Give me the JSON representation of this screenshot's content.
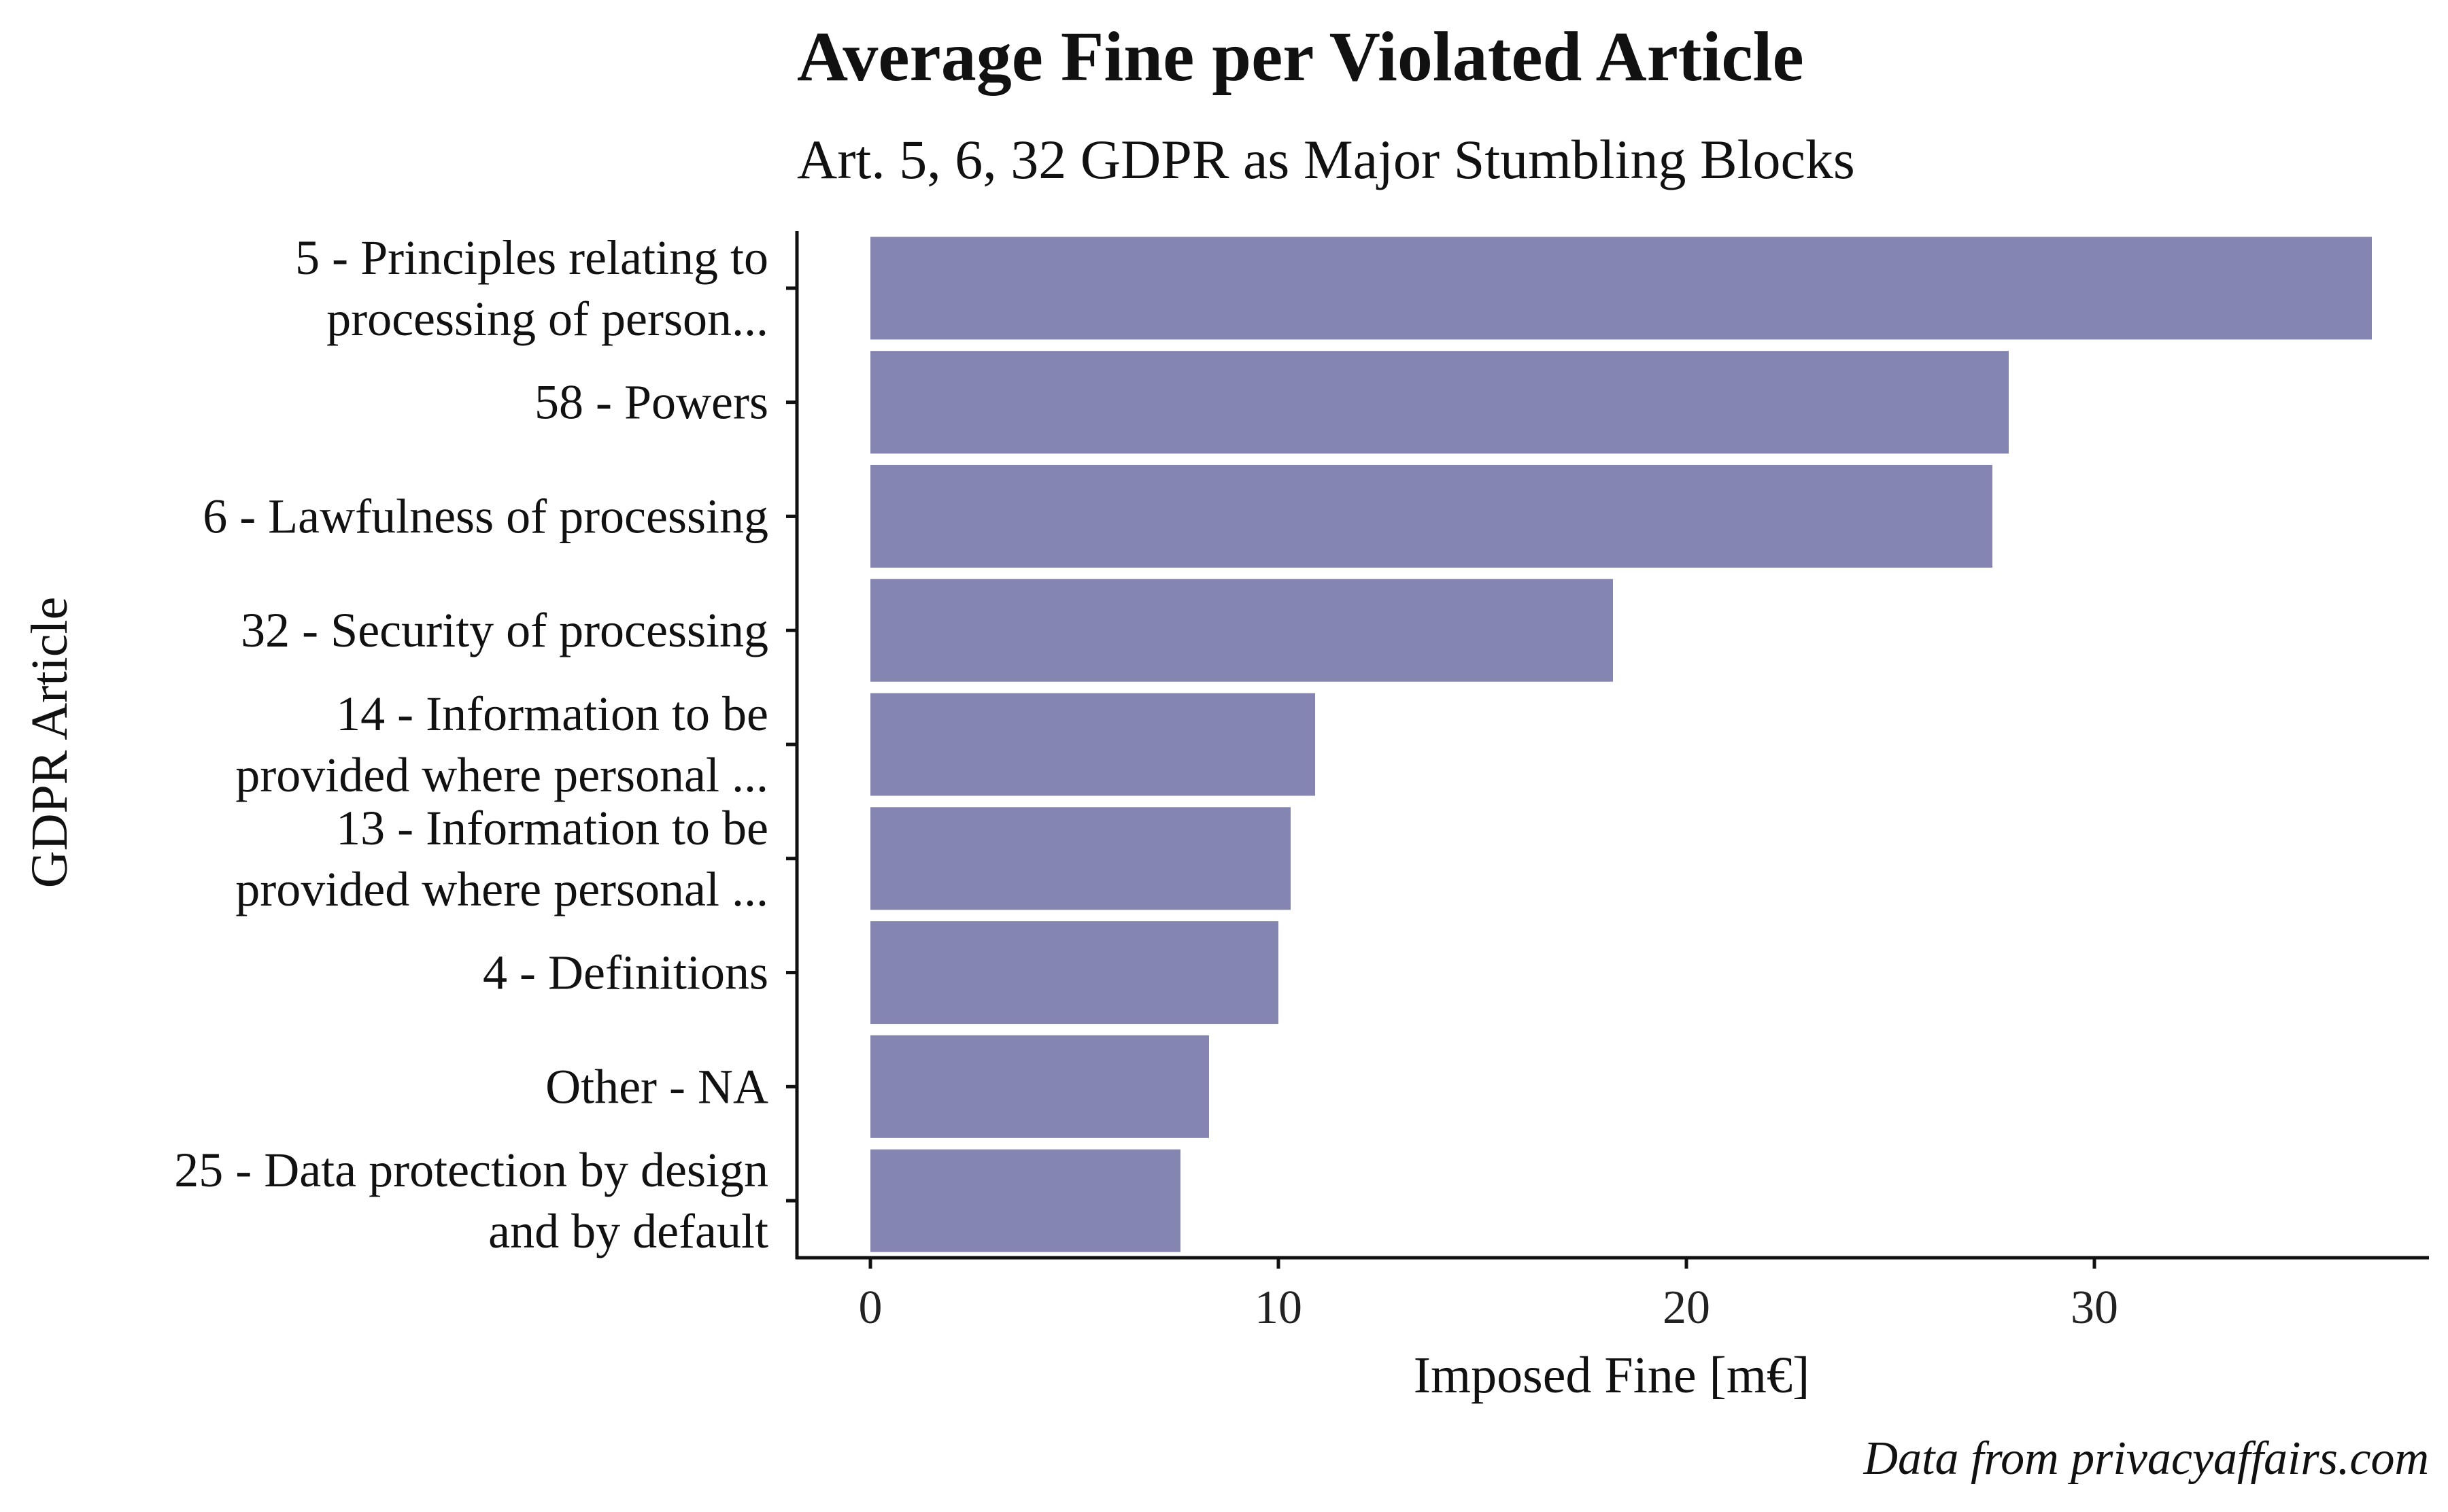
{
  "chart_data": {
    "type": "bar",
    "orientation": "horizontal",
    "title": "Average Fine per Violated Article",
    "subtitle": "Art. 5, 6, 32 GDPR as Major Stumbling Blocks",
    "xlabel": "Imposed Fine [m€]",
    "ylabel": "GDPR Article",
    "caption": "Data from privacyaffairs.com",
    "categories": [
      [
        "5 - Principles relating to",
        "processing of person..."
      ],
      [
        "58 - Powers"
      ],
      [
        "6 - Lawfulness of processing"
      ],
      [
        "32 - Security of processing"
      ],
      [
        "14 - Information to be",
        "provided where personal ..."
      ],
      [
        "13 - Information to be",
        "provided where personal ..."
      ],
      [
        "4 - Definitions"
      ],
      [
        "Other - NA"
      ],
      [
        "25 - Data protection by design",
        "and by default"
      ]
    ],
    "values": [
      36.8,
      27.9,
      27.5,
      18.2,
      10.9,
      10.3,
      10.0,
      8.3,
      7.6
    ],
    "xlim": [
      -1.8,
      38.2
    ],
    "xticks": [
      0,
      10,
      20,
      30
    ],
    "bar_color": "#8486b1",
    "grid": false,
    "legend": "none"
  }
}
